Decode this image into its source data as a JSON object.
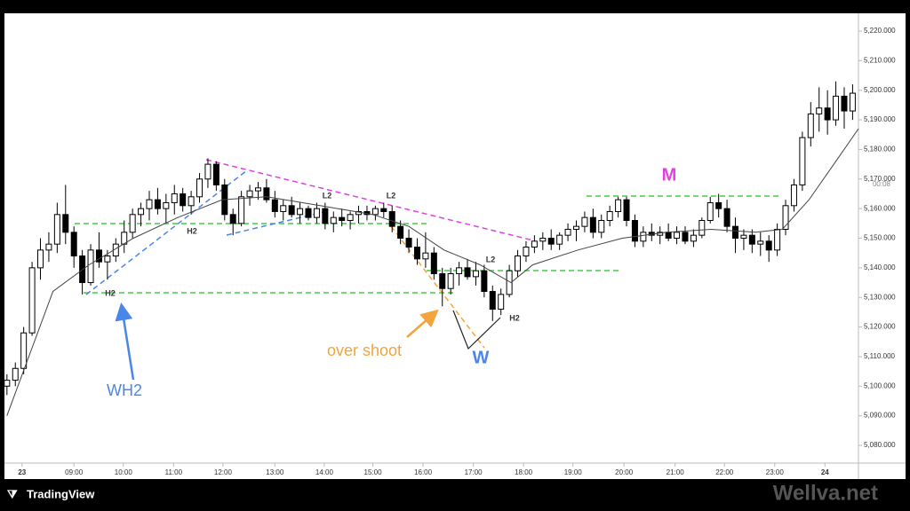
{
  "chart_data": {
    "type": "candlestick",
    "candles": [
      [
        5100,
        5104,
        5097,
        5102
      ],
      [
        5102,
        5108,
        5100,
        5106
      ],
      [
        5106,
        5120,
        5104,
        5118
      ],
      [
        5118,
        5142,
        5117,
        5140
      ],
      [
        5140,
        5150,
        5136,
        5146
      ],
      [
        5146,
        5152,
        5142,
        5148
      ],
      [
        5148,
        5162,
        5145,
        5158
      ],
      [
        5158,
        5168,
        5148,
        5152
      ],
      [
        5152,
        5154,
        5140,
        5144
      ],
      [
        5144,
        5146,
        5131,
        5135
      ],
      [
        5135,
        5148,
        5134,
        5146
      ],
      [
        5146,
        5152,
        5140,
        5142
      ],
      [
        5142,
        5146,
        5136,
        5144
      ],
      [
        5144,
        5150,
        5142,
        5148
      ],
      [
        5148,
        5156,
        5145,
        5152
      ],
      [
        5152,
        5160,
        5150,
        5158
      ],
      [
        5158,
        5162,
        5154,
        5160
      ],
      [
        5160,
        5166,
        5156,
        5163
      ],
      [
        5163,
        5167,
        5158,
        5160
      ],
      [
        5160,
        5165,
        5155,
        5162
      ],
      [
        5162,
        5168,
        5158,
        5165
      ],
      [
        5165,
        5167,
        5159,
        5161
      ],
      [
        5161,
        5166,
        5158,
        5164
      ],
      [
        5164,
        5172,
        5162,
        5170
      ],
      [
        5170,
        5177,
        5167,
        5175
      ],
      [
        5175,
        5176,
        5166,
        5168
      ],
      [
        5168,
        5170,
        5156,
        5158
      ],
      [
        5158,
        5160,
        5151,
        5155
      ],
      [
        5155,
        5166,
        5154,
        5164
      ],
      [
        5164,
        5168,
        5161,
        5166
      ],
      [
        5166,
        5169,
        5163,
        5167
      ],
      [
        5167,
        5170,
        5162,
        5163
      ],
      [
        5163,
        5166,
        5157,
        5159
      ],
      [
        5159,
        5163,
        5156,
        5161
      ],
      [
        5161,
        5164,
        5157,
        5158
      ],
      [
        5158,
        5162,
        5155,
        5160
      ],
      [
        5160,
        5161,
        5156,
        5157
      ],
      [
        5157,
        5162,
        5155,
        5160
      ],
      [
        5160,
        5162,
        5153,
        5155
      ],
      [
        5155,
        5159,
        5152,
        5157
      ],
      [
        5157,
        5160,
        5154,
        5156
      ],
      [
        5156,
        5159,
        5153,
        5158
      ],
      [
        5158,
        5161,
        5155,
        5159
      ],
      [
        5159,
        5161,
        5156,
        5158
      ],
      [
        5158,
        5161,
        5156,
        5160
      ],
      [
        5160,
        5162,
        5157,
        5159
      ],
      [
        5159,
        5161,
        5152,
        5154
      ],
      [
        5154,
        5156,
        5148,
        5150
      ],
      [
        5150,
        5153,
        5145,
        5147
      ],
      [
        5147,
        5150,
        5141,
        5143
      ],
      [
        5143,
        5152,
        5140,
        5145
      ],
      [
        5145,
        5147,
        5136,
        5138
      ],
      [
        5138,
        5140,
        5127,
        5133
      ],
      [
        5133,
        5140,
        5131,
        5138
      ],
      [
        5138,
        5142,
        5134,
        5140
      ],
      [
        5140,
        5143,
        5136,
        5137
      ],
      [
        5137,
        5142,
        5134,
        5139
      ],
      [
        5139,
        5141,
        5130,
        5132
      ],
      [
        5132,
        5134,
        5122,
        5126
      ],
      [
        5126,
        5133,
        5124,
        5131
      ],
      [
        5131,
        5141,
        5130,
        5139
      ],
      [
        5139,
        5146,
        5137,
        5144
      ],
      [
        5144,
        5149,
        5142,
        5147
      ],
      [
        5147,
        5151,
        5145,
        5149
      ],
      [
        5149,
        5152,
        5146,
        5150
      ],
      [
        5150,
        5153,
        5146,
        5148
      ],
      [
        5148,
        5152,
        5146,
        5151
      ],
      [
        5151,
        5155,
        5149,
        5153
      ],
      [
        5153,
        5156,
        5149,
        5154
      ],
      [
        5154,
        5159,
        5152,
        5157
      ],
      [
        5157,
        5160,
        5150,
        5152
      ],
      [
        5152,
        5158,
        5150,
        5156
      ],
      [
        5156,
        5161,
        5154,
        5159
      ],
      [
        5159,
        5164,
        5157,
        5163
      ],
      [
        5163,
        5164,
        5154,
        5156
      ],
      [
        5156,
        5158,
        5147,
        5149
      ],
      [
        5149,
        5154,
        5147,
        5152
      ],
      [
        5152,
        5155,
        5149,
        5151
      ],
      [
        5151,
        5154,
        5148,
        5152
      ],
      [
        5152,
        5155,
        5149,
        5150
      ],
      [
        5150,
        5154,
        5148,
        5152
      ],
      [
        5152,
        5154,
        5148,
        5149
      ],
      [
        5149,
        5153,
        5147,
        5151
      ],
      [
        5151,
        5157,
        5150,
        5156
      ],
      [
        5156,
        5164,
        5155,
        5162
      ],
      [
        5162,
        5165,
        5157,
        5160
      ],
      [
        5160,
        5163,
        5152,
        5154
      ],
      [
        5154,
        5157,
        5145,
        5150
      ],
      [
        5150,
        5153,
        5146,
        5151
      ],
      [
        5151,
        5153,
        5145,
        5148
      ],
      [
        5148,
        5152,
        5144,
        5149
      ],
      [
        5149,
        5151,
        5142,
        5146
      ],
      [
        5146,
        5155,
        5144,
        5153
      ],
      [
        5153,
        5163,
        5151,
        5161
      ],
      [
        5161,
        5170,
        5159,
        5168
      ],
      [
        5168,
        5186,
        5166,
        5184
      ],
      [
        5184,
        5196,
        5181,
        5192
      ],
      [
        5192,
        5201,
        5186,
        5194
      ],
      [
        5194,
        5200,
        5185,
        5190
      ],
      [
        5190,
        5203,
        5188,
        5198
      ],
      [
        5198,
        5201,
        5187,
        5193
      ],
      [
        5193,
        5202,
        5190,
        5199
      ]
    ],
    "up_color": "#ffffff",
    "down_color": "#000000",
    "ma": {
      "x": [
        0,
        5.5,
        9.8,
        15.1,
        20.4,
        25.7,
        31,
        37.4,
        43.7,
        48,
        52.2,
        56.5,
        60.2,
        62.8,
        68.2,
        73.5,
        78.8,
        84.1,
        89.4,
        92.6,
        95.8,
        99,
        101.7
      ],
      "values": [
        5090,
        5132,
        5141,
        5150,
        5157,
        5163,
        5164,
        5161,
        5158,
        5154,
        5146,
        5141,
        5135,
        5141,
        5146,
        5150,
        5152,
        5153,
        5152,
        5153,
        5163,
        5176,
        5187
      ],
      "color": "#444444"
    },
    "xlim": [
      -0.3,
      101.7
    ],
    "ylim": [
      5074,
      5226
    ],
    "yticks": [
      {
        "value": 5080,
        "label": "5,080.000"
      },
      {
        "value": 5090,
        "label": "5,090.000"
      },
      {
        "value": 5100,
        "label": "5,100.000"
      },
      {
        "value": 5110,
        "label": "5,110.000"
      },
      {
        "value": 5120,
        "label": "5,120.000"
      },
      {
        "value": 5130,
        "label": "5,130.000"
      },
      {
        "value": 5140,
        "label": "5,140.000"
      },
      {
        "value": 5150,
        "label": "5,150.000"
      },
      {
        "value": 5160,
        "label": "5,160.000"
      },
      {
        "value": 5170,
        "label": "5,170.000"
      },
      {
        "value": 5180,
        "label": "5,180.000"
      },
      {
        "value": 5190,
        "label": "5,190.000"
      },
      {
        "value": 5200,
        "label": "5,200.000"
      },
      {
        "value": 5210,
        "label": "5,210.000"
      },
      {
        "value": 5220,
        "label": "5,220.000"
      }
    ],
    "xticks": [
      {
        "value": 1.8,
        "label": "23"
      },
      {
        "value": 8,
        "label": "09:00"
      },
      {
        "value": 13.9,
        "label": "10:00"
      },
      {
        "value": 19.9,
        "label": "11:00"
      },
      {
        "value": 25.8,
        "label": "12:00"
      },
      {
        "value": 32,
        "label": "13:00"
      },
      {
        "value": 37.9,
        "label": "14:00"
      },
      {
        "value": 43.7,
        "label": "15:00"
      },
      {
        "value": 49.7,
        "label": "16:00"
      },
      {
        "value": 55.7,
        "label": "17:00"
      },
      {
        "value": 61.7,
        "label": "18:00"
      },
      {
        "value": 67.6,
        "label": "19:00"
      },
      {
        "value": 73.7,
        "label": "20:00"
      },
      {
        "value": 79.8,
        "label": "21:00"
      },
      {
        "value": 85.7,
        "label": "22:00"
      },
      {
        "value": 91.7,
        "label": "23:00"
      },
      {
        "value": 97.7,
        "label": "24"
      }
    ],
    "countdown": "00:08",
    "annotations": [
      {
        "text": "H2",
        "color": "#333333"
      },
      {
        "text": "H2",
        "color": "#333333"
      },
      {
        "text": "L2",
        "color": "#333333"
      },
      {
        "text": "L2",
        "color": "#333333"
      },
      {
        "text": "L2",
        "color": "#333333"
      },
      {
        "text": "H2",
        "color": "#333333"
      },
      {
        "text": "WH2",
        "color": "#4a86e8"
      },
      {
        "text": "over shoot",
        "color": "#f4a43c"
      },
      {
        "text": "W",
        "color": "#4a86e8"
      },
      {
        "text": "M",
        "color": "#e040e0"
      }
    ]
  },
  "brand": "TradingView",
  "watermark": "Wellva.net"
}
